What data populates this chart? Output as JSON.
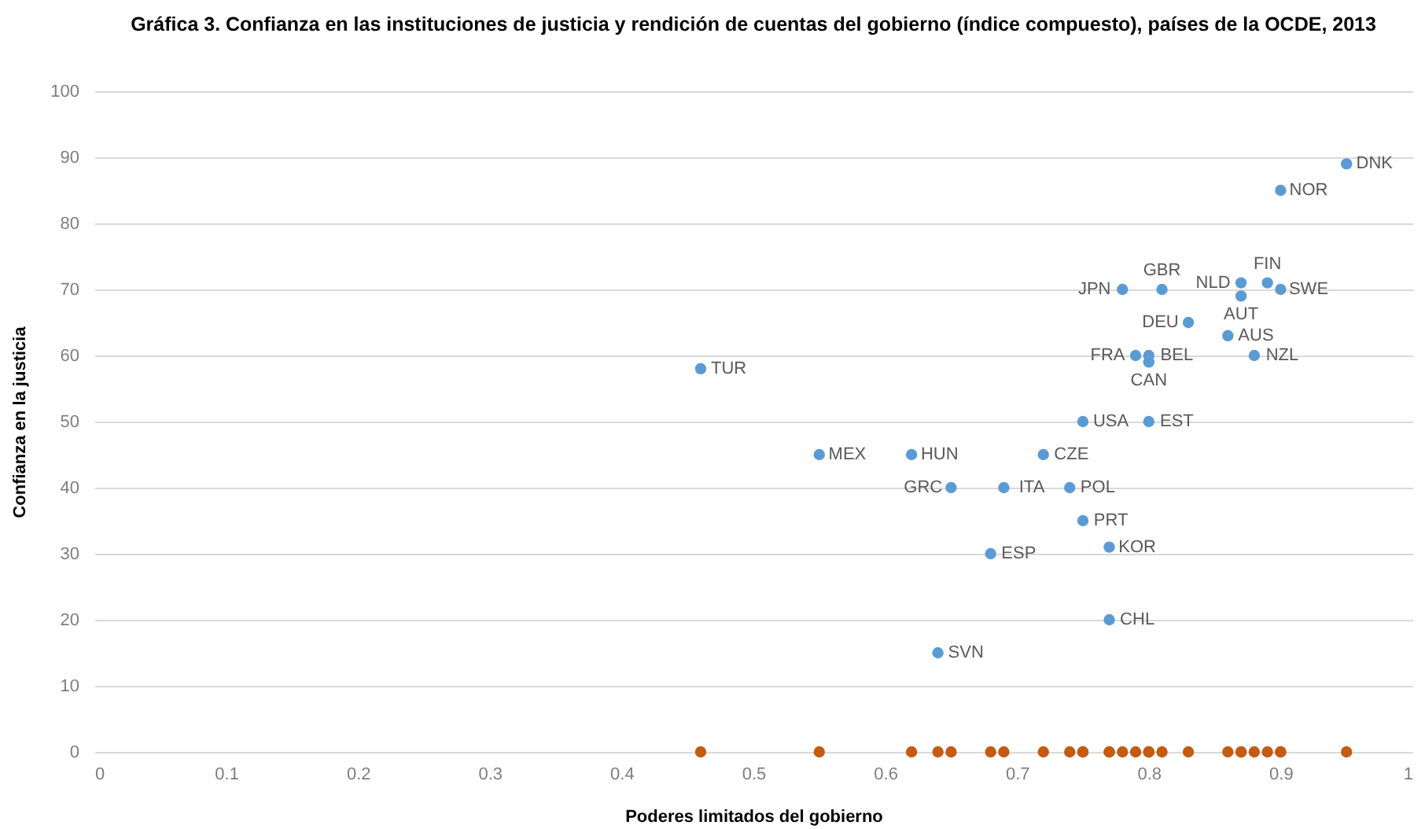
{
  "chart_data": {
    "type": "scatter",
    "title": "Gráfica 3. Confianza en las instituciones de justicia y rendición de cuentas del gobierno (índice compuesto), países de la OCDE, 2013",
    "xlabel": "Poderes limitados del gobierno",
    "ylabel": "Confianza en la justicia",
    "xlim": [
      0,
      1
    ],
    "ylim": [
      0,
      100
    ],
    "xticks": [
      0,
      0.1,
      0.2,
      0.3,
      0.4,
      0.5,
      0.6,
      0.7,
      0.8,
      0.9,
      1
    ],
    "yticks": [
      0,
      10,
      20,
      30,
      40,
      50,
      60,
      70,
      80,
      90,
      100
    ],
    "grid": "y",
    "marker": "circle",
    "series": [
      {
        "color": "#5b9bd5",
        "x": [
          0.95,
          0.9,
          0.89,
          0.9,
          0.87,
          0.87,
          0.81,
          0.78,
          0.83,
          0.86,
          0.79,
          0.8,
          0.8,
          0.88,
          0.46,
          0.75,
          0.8,
          0.55,
          0.62,
          0.72,
          0.65,
          0.69,
          0.74,
          0.75,
          0.77,
          0.68,
          0.77,
          0.64
        ],
        "values": [
          89,
          85,
          71,
          70,
          71,
          69,
          70,
          70,
          65,
          63,
          60,
          60,
          59,
          60,
          58,
          50,
          50,
          45,
          45,
          45,
          40,
          40,
          40,
          35,
          31,
          30,
          20,
          15
        ],
        "value_labels": [
          "DNK",
          "NOR",
          "FIN",
          "SWE",
          "NLD",
          "AUT",
          "GBR",
          "JPN",
          "DEU",
          "AUS",
          "FRA",
          "BEL",
          "CAN",
          "NZL",
          "TUR",
          "USA",
          "EST",
          "MEX",
          "HUN",
          "CZE",
          "GRC",
          "ITA",
          "POL",
          "PRT",
          "KOR",
          "ESP",
          "CHL",
          "SVN"
        ]
      },
      {
        "color": "#c55a11",
        "x": [
          0.95,
          0.9,
          0.89,
          0.9,
          0.87,
          0.87,
          0.81,
          0.78,
          0.83,
          0.86,
          0.79,
          0.8,
          0.8,
          0.88,
          0.46,
          0.75,
          0.8,
          0.55,
          0.62,
          0.72,
          0.65,
          0.69,
          0.74,
          0.75,
          0.77,
          0.68,
          0.77,
          0.64
        ],
        "values": [
          0,
          0,
          0,
          0,
          0,
          0,
          0,
          0,
          0,
          0,
          0,
          0,
          0,
          0,
          0,
          0,
          0,
          0,
          0,
          0,
          0,
          0,
          0,
          0,
          0,
          0,
          0,
          0
        ]
      }
    ]
  }
}
